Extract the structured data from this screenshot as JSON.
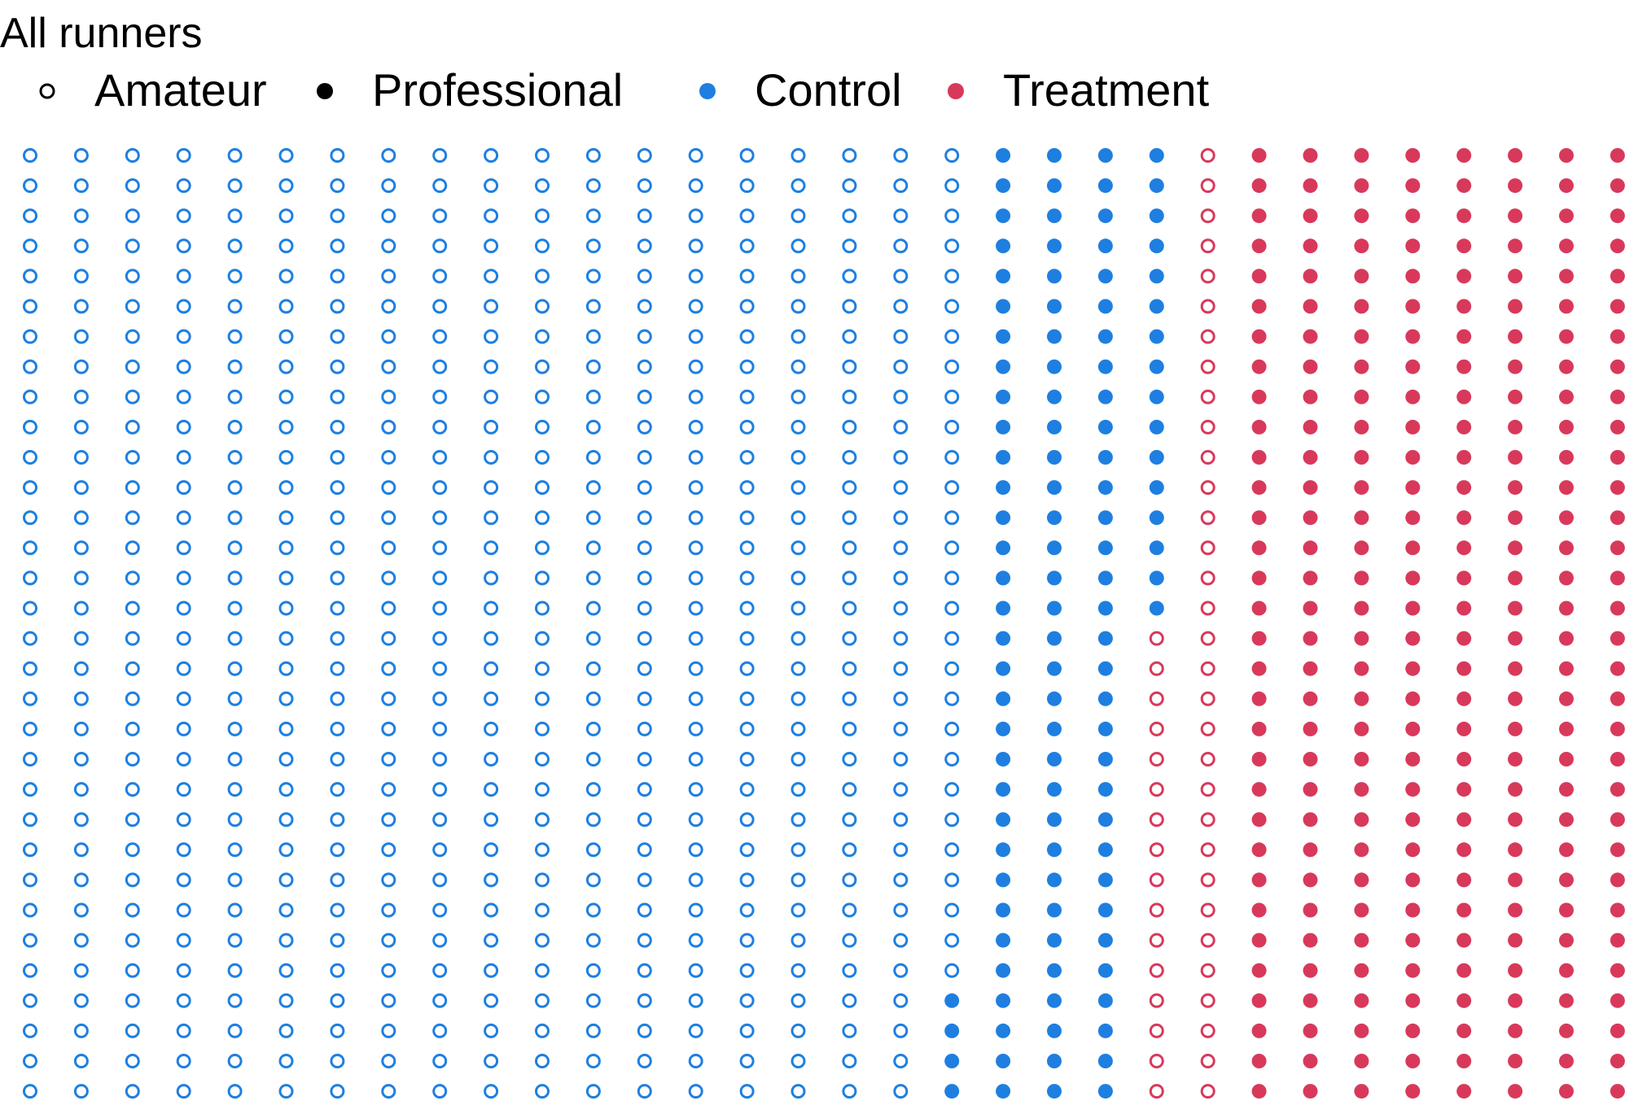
{
  "chart_data": {
    "type": "scatter",
    "subtype": "dot-grid",
    "title": "All runners",
    "legend_placement": "top-left",
    "legend": {
      "shape": [
        {
          "label": "Amateur",
          "marker": "hollow"
        },
        {
          "label": "Professional",
          "marker": "filled"
        }
      ],
      "color": [
        {
          "label": "Control",
          "color": "#1E7FE0"
        },
        {
          "label": "Treatment",
          "color": "#D8395A"
        }
      ]
    },
    "grid": false,
    "rows_per_column": 32,
    "column_order": "top-to-bottom, left-to-right",
    "groups": [
      {
        "level": "Amateur",
        "group": "Control",
        "count": 604
      },
      {
        "level": "Professional",
        "group": "Control",
        "count": 116
      },
      {
        "level": "Amateur",
        "group": "Treatment",
        "count": 48
      },
      {
        "level": "Professional",
        "group": "Treatment",
        "count": 288
      }
    ],
    "colors": {
      "Control": "#1E7FE0",
      "Treatment": "#D8395A",
      "legend_ink": "#000000"
    }
  }
}
